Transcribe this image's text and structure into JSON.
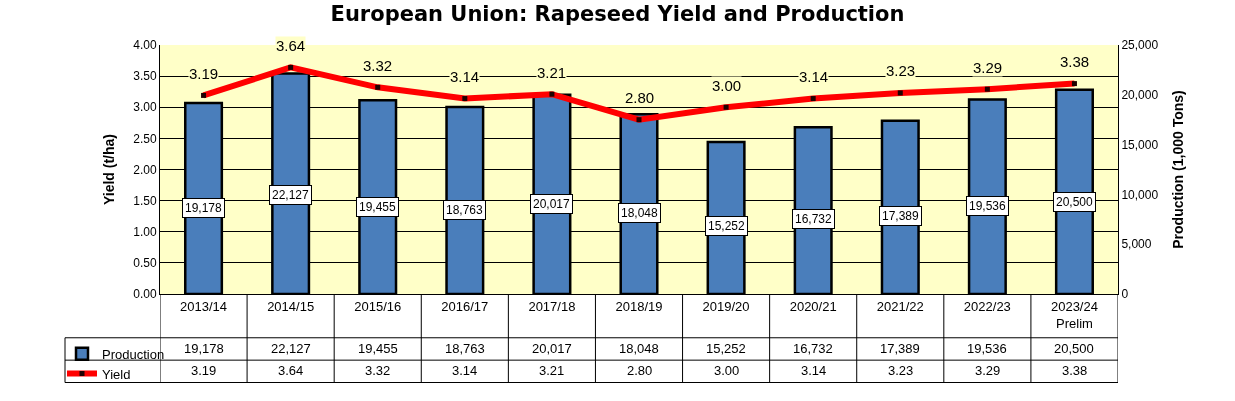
{
  "chart_data": {
    "type": "bar",
    "title": "European Union: Rapeseed Yield and Production",
    "categories": [
      "2013/14",
      "2014/15",
      "2015/16",
      "2016/17",
      "2017/18",
      "2018/19",
      "2019/20",
      "2020/21",
      "2021/22",
      "2022/23",
      "2023/24\nPrelim"
    ],
    "series": [
      {
        "name": "Production",
        "axis": "y2",
        "color": "#4a7ebb",
        "values": [
          19178,
          22127,
          19455,
          18763,
          20017,
          18048,
          15252,
          16732,
          17389,
          19536,
          20500
        ],
        "value_labels": [
          "19,178",
          "22,127",
          "19,455",
          "18,763",
          "20,017",
          "18,048",
          "15,252",
          "16,732",
          "17,389",
          "19,536",
          "20,500"
        ]
      },
      {
        "name": "Yield",
        "type": "line",
        "color": "#ff0000",
        "marker": "square",
        "line_style": "solid",
        "values": [
          3.19,
          3.64,
          3.32,
          3.14,
          3.21,
          2.8,
          3.0,
          3.14,
          3.23,
          3.29,
          3.38
        ],
        "value_labels": [
          "3.19",
          "3.64",
          "3.32",
          "3.14",
          "3.21",
          "2.80",
          "3.00",
          "3.14",
          "3.23",
          "3.29",
          "3.38"
        ]
      }
    ],
    "ylabel": "Yield (t/ha)",
    "y2label": "Production (1,000 Tons)",
    "ylim": [
      0,
      4
    ],
    "yticks": [
      {
        "value": 0,
        "label": "0.00"
      },
      {
        "value": 0.5,
        "label": "0.50"
      },
      {
        "value": 1,
        "label": "1.00"
      },
      {
        "value": 1.5,
        "label": "1.50"
      },
      {
        "value": 2,
        "label": "2.00"
      },
      {
        "value": 2.5,
        "label": "2.50"
      },
      {
        "value": 3,
        "label": "3.00"
      },
      {
        "value": 3.5,
        "label": "3.50"
      },
      {
        "value": 4,
        "label": "4.00"
      }
    ],
    "y2lim": [
      0,
      25000
    ],
    "y2ticks": [
      0,
      {
        "value": 5000,
        "label": "5,000"
      },
      {
        "value": 10000,
        "label": "10,000"
      },
      {
        "value": 15000,
        "label": "15,000"
      },
      {
        "value": 20000,
        "label": "20,000"
      },
      {
        "value": 25000,
        "label": "25,000"
      }
    ],
    "grid": "y",
    "legend": "bottom left"
  }
}
